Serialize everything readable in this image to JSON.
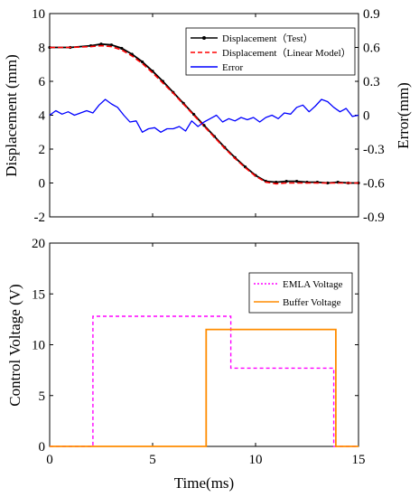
{
  "chart_data": [
    {
      "type": "line",
      "x_range": [
        0,
        15
      ],
      "ylabel": "Displacement (mm)",
      "ylim": [
        -2,
        10
      ],
      "yticks": [
        "-2",
        "0",
        "2",
        "4",
        "6",
        "8",
        "10"
      ],
      "ylabel_right": "Error(mm)",
      "ylim_right": [
        -0.9,
        0.9
      ],
      "yticks_right": [
        "-0.9",
        "-0.6",
        "-0.3",
        "0",
        "0.3",
        "0.6",
        "0.9"
      ],
      "legend_position": "top-right",
      "series": [
        {
          "name": "Displacement（Test）",
          "color": "#000000",
          "axis": "left",
          "x": [
            0,
            1,
            2,
            2.5,
            3,
            3.5,
            4,
            4.5,
            5,
            5.5,
            6,
            6.5,
            7,
            7.5,
            8,
            8.5,
            9,
            9.5,
            10,
            10.5,
            11,
            11.5,
            12,
            12.5,
            13,
            13.5,
            14,
            14.5,
            15
          ],
          "y": [
            8.0,
            8.0,
            8.1,
            8.2,
            8.15,
            7.95,
            7.6,
            7.15,
            6.6,
            6.0,
            5.35,
            4.7,
            4.05,
            3.4,
            2.75,
            2.1,
            1.5,
            0.95,
            0.45,
            0.1,
            0.05,
            0.1,
            0.1,
            0.05,
            0.05,
            0.0,
            0.05,
            0.0,
            0.0
          ]
        },
        {
          "name": "Displacement（Linear Model）",
          "color": "#ff0000",
          "axis": "left",
          "x": [
            0,
            1,
            2,
            2.5,
            3,
            3.5,
            4,
            4.5,
            5,
            5.5,
            6,
            6.5,
            7,
            7.5,
            8,
            8.5,
            9,
            9.5,
            10,
            10.5,
            11,
            11.5,
            12,
            12.5,
            13,
            13.5,
            14,
            14.5,
            15
          ],
          "y": [
            8.0,
            8.0,
            8.05,
            8.1,
            8.05,
            7.85,
            7.5,
            7.05,
            6.5,
            5.9,
            5.3,
            4.65,
            4.0,
            3.35,
            2.7,
            2.05,
            1.45,
            0.9,
            0.4,
            0.05,
            -0.05,
            0.0,
            0.0,
            0.0,
            0.0,
            0.0,
            0.0,
            0.0,
            0.0
          ]
        },
        {
          "name": "Error",
          "color": "#0000ff",
          "axis": "right",
          "x": [
            0,
            0.3,
            0.6,
            0.9,
            1.2,
            1.5,
            1.8,
            2.1,
            2.4,
            2.7,
            3.0,
            3.3,
            3.6,
            3.9,
            4.2,
            4.5,
            4.8,
            5.1,
            5.4,
            5.7,
            6.0,
            6.3,
            6.6,
            6.9,
            7.2,
            7.5,
            7.8,
            8.1,
            8.4,
            8.7,
            9.0,
            9.3,
            9.6,
            9.9,
            10.2,
            10.5,
            10.8,
            11.1,
            11.4,
            11.7,
            12.0,
            12.3,
            12.6,
            12.9,
            13.2,
            13.5,
            13.8,
            14.1,
            14.4,
            14.7,
            15.0
          ],
          "y": [
            0.0,
            0.04,
            0.01,
            0.03,
            0.0,
            0.02,
            0.04,
            0.02,
            0.09,
            0.14,
            0.1,
            0.07,
            0.0,
            -0.06,
            -0.05,
            -0.15,
            -0.12,
            -0.11,
            -0.15,
            -0.12,
            -0.12,
            -0.1,
            -0.14,
            -0.05,
            -0.1,
            -0.06,
            -0.03,
            0.0,
            -0.06,
            -0.03,
            -0.05,
            -0.02,
            -0.04,
            -0.02,
            -0.06,
            -0.02,
            0.0,
            -0.03,
            0.02,
            0.01,
            0.07,
            0.09,
            0.03,
            0.08,
            0.14,
            0.12,
            0.07,
            0.03,
            0.06,
            -0.01,
            0.0
          ]
        }
      ]
    },
    {
      "type": "line",
      "xlabel": "Time(ms)",
      "xlim": [
        0,
        15
      ],
      "xticks": [
        "0",
        "5",
        "10",
        "15"
      ],
      "ylabel": "Control Voltage (V)",
      "ylim": [
        0,
        20
      ],
      "yticks": [
        "0",
        "5",
        "10",
        "15",
        "20"
      ],
      "legend_position": "right",
      "series": [
        {
          "name": "EMLA Voltage",
          "color": "#ff00ff",
          "dash": "dotted",
          "x": [
            0,
            2.1,
            2.1,
            8.8,
            8.8,
            13.8,
            13.8,
            15
          ],
          "y": [
            0,
            0,
            12.8,
            12.8,
            7.7,
            7.7,
            0,
            0
          ]
        },
        {
          "name": "Buffer Voltage",
          "color": "#ff8c00",
          "dash": "solid",
          "x": [
            0,
            7.6,
            7.6,
            13.9,
            13.9,
            15
          ],
          "y": [
            0,
            0,
            11.5,
            11.5,
            0,
            0
          ]
        }
      ]
    }
  ]
}
